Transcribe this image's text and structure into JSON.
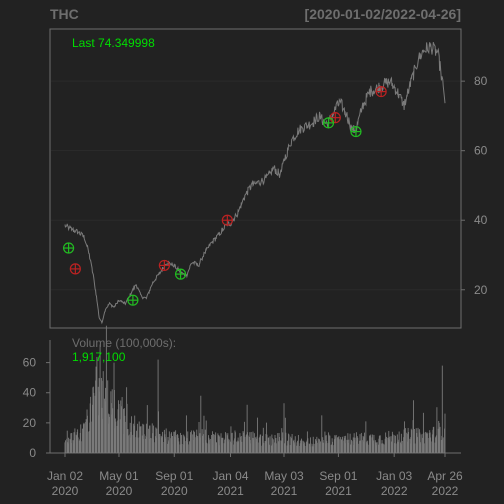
{
  "header": {
    "symbol": "THC",
    "date_range": "[2020-01-02/2022-04-26]"
  },
  "colors": {
    "background": "#222222",
    "panel_border": "#6e6e6e",
    "price_line": "#7a7a7a",
    "volume_bars": "#7a7a7a",
    "grid": "#2b2b2b",
    "label_green": "#00dd00",
    "buy_marker": "#22bb22",
    "sell_marker": "#bb2222",
    "muted_text": "#6e6e6e"
  },
  "chart_data": [
    {
      "type": "line",
      "panel": "price",
      "title": "",
      "label_prefix": "Last",
      "last_value_text": "74.349998",
      "ylim": [
        9,
        95
      ],
      "y_ticks": [
        20,
        40,
        60,
        80
      ],
      "y_tick_labels": [
        "20",
        "40",
        "60",
        "80"
      ],
      "y_axis_side": "right",
      "grid": true,
      "x_range": [
        "2020-01-02",
        "2022-04-26"
      ],
      "x_ticks": [
        {
          "date": "2020-01-02",
          "line1": "Jan 02",
          "line2": "2020"
        },
        {
          "date": "2020-05-01",
          "line1": "May 01",
          "line2": "2020"
        },
        {
          "date": "2020-09-01",
          "line1": "Sep 01",
          "line2": "2020"
        },
        {
          "date": "2021-01-04",
          "line1": "Jan 04",
          "line2": "2021"
        },
        {
          "date": "2021-05-03",
          "line1": "May 03",
          "line2": "2021"
        },
        {
          "date": "2021-09-01",
          "line1": "Sep 01",
          "line2": "2021"
        },
        {
          "date": "2022-01-03",
          "line1": "Jan 03",
          "line2": "2022"
        },
        {
          "date": "2022-04-26",
          "line1": "Apr 26",
          "line2": "2022"
        }
      ],
      "price_path": [
        [
          "2020-01-02",
          38.5
        ],
        [
          "2020-01-15",
          37.5
        ],
        [
          "2020-02-01",
          36.5
        ],
        [
          "2020-02-15",
          35.0
        ],
        [
          "2020-02-25",
          30.0
        ],
        [
          "2020-03-05",
          24.0
        ],
        [
          "2020-03-12",
          18.0
        ],
        [
          "2020-03-18",
          12.0
        ],
        [
          "2020-03-24",
          10.5
        ],
        [
          "2020-04-01",
          14.5
        ],
        [
          "2020-04-10",
          16.0
        ],
        [
          "2020-04-20",
          15.0
        ],
        [
          "2020-05-01",
          17.0
        ],
        [
          "2020-05-15",
          16.0
        ],
        [
          "2020-06-01",
          20.0
        ],
        [
          "2020-06-08",
          21.5
        ],
        [
          "2020-06-20",
          18.0
        ],
        [
          "2020-07-01",
          17.5
        ],
        [
          "2020-07-15",
          22.0
        ],
        [
          "2020-08-01",
          25.0
        ],
        [
          "2020-08-15",
          28.0
        ],
        [
          "2020-09-01",
          27.0
        ],
        [
          "2020-09-15",
          25.0
        ],
        [
          "2020-09-28",
          24.0
        ],
        [
          "2020-10-10",
          28.0
        ],
        [
          "2020-10-25",
          27.0
        ],
        [
          "2020-11-05",
          30.0
        ],
        [
          "2020-11-20",
          33.0
        ],
        [
          "2020-12-10",
          36.0
        ],
        [
          "2020-12-28",
          39.0
        ],
        [
          "2021-01-04",
          39.0
        ],
        [
          "2021-01-20",
          42.0
        ],
        [
          "2021-02-05",
          47.0
        ],
        [
          "2021-02-20",
          50.0
        ],
        [
          "2021-03-10",
          51.0
        ],
        [
          "2021-03-25",
          52.0
        ],
        [
          "2021-04-10",
          55.0
        ],
        [
          "2021-04-25",
          53.0
        ],
        [
          "2021-05-05",
          58.0
        ],
        [
          "2021-05-20",
          63.0
        ],
        [
          "2021-06-05",
          66.0
        ],
        [
          "2021-06-20",
          67.0
        ],
        [
          "2021-07-05",
          68.0
        ],
        [
          "2021-07-20",
          70.0
        ],
        [
          "2021-08-01",
          68.0
        ],
        [
          "2021-08-10",
          68.0
        ],
        [
          "2021-08-25",
          72.0
        ],
        [
          "2021-09-05",
          74.0
        ],
        [
          "2021-09-20",
          70.0
        ],
        [
          "2021-10-01",
          66.0
        ],
        [
          "2021-10-10",
          66.0
        ],
        [
          "2021-10-25",
          73.0
        ],
        [
          "2021-11-10",
          77.0
        ],
        [
          "2021-11-25",
          78.0
        ],
        [
          "2021-12-10",
          79.0
        ],
        [
          "2021-12-25",
          80.0
        ],
        [
          "2022-01-10",
          77.0
        ],
        [
          "2022-01-25",
          73.0
        ],
        [
          "2022-02-10",
          80.0
        ],
        [
          "2022-02-25",
          86.0
        ],
        [
          "2022-03-10",
          89.0
        ],
        [
          "2022-03-25",
          90.0
        ],
        [
          "2022-04-10",
          88.0
        ],
        [
          "2022-04-20",
          80.0
        ],
        [
          "2022-04-26",
          74.349998
        ]
      ],
      "buy_signals": [
        {
          "date": "2020-01-10",
          "price": 32.0
        },
        {
          "date": "2020-06-01",
          "price": 17.0
        },
        {
          "date": "2020-09-15",
          "price": 24.5
        },
        {
          "date": "2021-08-10",
          "price": 68.0
        },
        {
          "date": "2021-10-10",
          "price": 65.5
        }
      ],
      "sell_signals": [
        {
          "date": "2020-01-25",
          "price": 26.0
        },
        {
          "date": "2020-08-10",
          "price": 27.0
        },
        {
          "date": "2020-12-28",
          "price": 40.0
        },
        {
          "date": "2021-08-25",
          "price": 69.5
        },
        {
          "date": "2021-12-05",
          "price": 77.0
        }
      ]
    },
    {
      "type": "bar",
      "panel": "volume",
      "title": "",
      "label": "Volume (100,000s):",
      "last_value_text": "1,917,100",
      "ylim": [
        0,
        75
      ],
      "y_ticks": [
        0,
        20,
        40,
        60
      ],
      "y_tick_labels": [
        "0",
        "20",
        "40",
        "60"
      ],
      "y_axis_side": "left",
      "volume_profile": [
        [
          "2020-01-02",
          11
        ],
        [
          "2020-01-20",
          12
        ],
        [
          "2020-02-10",
          14
        ],
        [
          "2020-02-25",
          24
        ],
        [
          "2020-03-05",
          38
        ],
        [
          "2020-03-15",
          50
        ],
        [
          "2020-03-25",
          42
        ],
        [
          "2020-04-10",
          36
        ],
        [
          "2020-04-25",
          30
        ],
        [
          "2020-05-10",
          24
        ],
        [
          "2020-05-25",
          20
        ],
        [
          "2020-06-10",
          18
        ],
        [
          "2020-06-25",
          15
        ],
        [
          "2020-07-15",
          14
        ],
        [
          "2020-08-05",
          13
        ],
        [
          "2020-08-25",
          11
        ],
        [
          "2020-09-15",
          11
        ],
        [
          "2020-10-10",
          11
        ],
        [
          "2020-11-05",
          12
        ],
        [
          "2020-12-01",
          10
        ],
        [
          "2021-01-04",
          10
        ],
        [
          "2021-02-01",
          12
        ],
        [
          "2021-03-01",
          10
        ],
        [
          "2021-04-01",
          9
        ],
        [
          "2021-05-01",
          10
        ],
        [
          "2021-06-01",
          9
        ],
        [
          "2021-07-01",
          8
        ],
        [
          "2021-08-01",
          9
        ],
        [
          "2021-09-01",
          9
        ],
        [
          "2021-10-01",
          10
        ],
        [
          "2021-11-01",
          10
        ],
        [
          "2021-12-01",
          10
        ],
        [
          "2022-01-03",
          11
        ],
        [
          "2022-02-01",
          12
        ],
        [
          "2022-03-01",
          12
        ],
        [
          "2022-04-01",
          13
        ],
        [
          "2022-04-26",
          19
        ]
      ],
      "volume_spikes": [
        {
          "date": "2020-03-20",
          "value": 72
        },
        {
          "date": "2020-04-20",
          "value": 60
        },
        {
          "date": "2020-07-27",
          "value": 62
        },
        {
          "date": "2020-10-30",
          "value": 38
        },
        {
          "date": "2021-02-10",
          "value": 32
        },
        {
          "date": "2021-05-03",
          "value": 33
        },
        {
          "date": "2021-07-26",
          "value": 25
        },
        {
          "date": "2021-11-01",
          "value": 21
        },
        {
          "date": "2022-02-15",
          "value": 35
        },
        {
          "date": "2022-04-20",
          "value": 58
        }
      ]
    }
  ]
}
